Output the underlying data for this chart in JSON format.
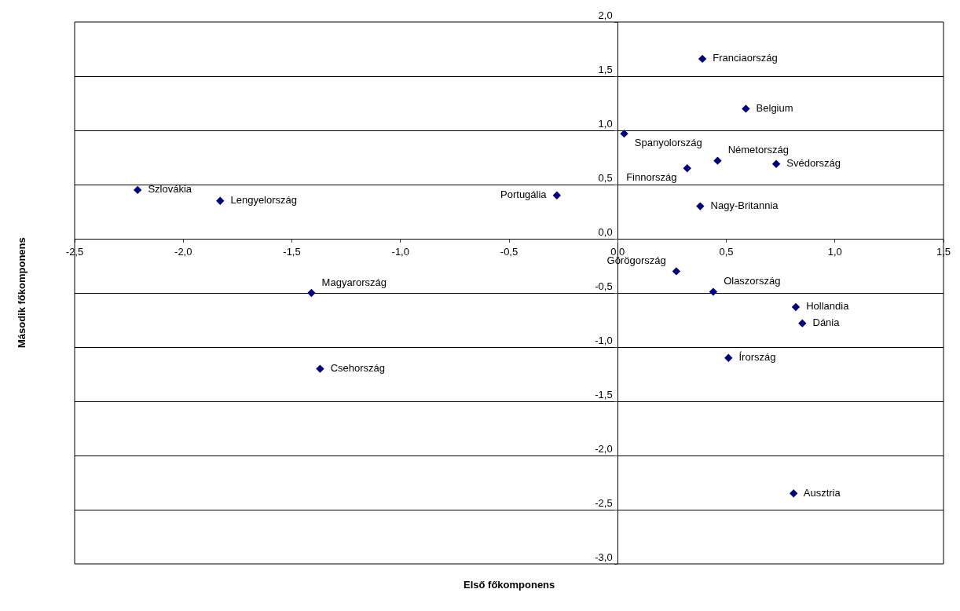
{
  "chart_data": {
    "type": "scatter",
    "xlabel": "Első főkomponens",
    "ylabel": "Második főkomponens",
    "xlim": [
      -2.5,
      1.5
    ],
    "ylim": [
      -3.0,
      2.0
    ],
    "xticks": [
      {
        "value": -2.5,
        "label": "-2,5"
      },
      {
        "value": -2.0,
        "label": "-2,0"
      },
      {
        "value": -1.5,
        "label": "-1,5"
      },
      {
        "value": -1.0,
        "label": "-1,0"
      },
      {
        "value": -0.5,
        "label": "-0,5"
      },
      {
        "value": 0.0,
        "label": "0,0"
      },
      {
        "value": 0.5,
        "label": "0,5"
      },
      {
        "value": 1.0,
        "label": "1,0"
      },
      {
        "value": 1.5,
        "label": "1,5"
      }
    ],
    "yticks": [
      {
        "value": -3.0,
        "label": "-3,0"
      },
      {
        "value": -2.5,
        "label": "-2,5"
      },
      {
        "value": -2.0,
        "label": "-2,0"
      },
      {
        "value": -1.5,
        "label": "-1,5"
      },
      {
        "value": -1.0,
        "label": "-1,0"
      },
      {
        "value": -0.5,
        "label": "-0,5"
      },
      {
        "value": 0.0,
        "label": "0,0"
      },
      {
        "value": 0.5,
        "label": "0,5"
      },
      {
        "value": 1.0,
        "label": "1,0"
      },
      {
        "value": 1.5,
        "label": "1,5"
      },
      {
        "value": 2.0,
        "label": "2,0"
      }
    ],
    "grid": "y",
    "marker": "diamond",
    "series": [
      {
        "color": "#000080",
        "x": [
          -2.21,
          -1.83,
          -1.41,
          -1.37,
          -0.28,
          0.03,
          0.32,
          0.46,
          0.73,
          0.59,
          0.39,
          0.38,
          0.27,
          0.44,
          0.82,
          0.85,
          0.51,
          0.81
        ],
        "values": [
          0.45,
          0.35,
          -0.5,
          -1.2,
          0.4,
          0.97,
          0.65,
          0.72,
          0.69,
          1.2,
          1.66,
          0.3,
          -0.3,
          -0.49,
          -0.63,
          -0.78,
          -1.1,
          -2.35
        ],
        "value_labels": [
          "Szlovákia",
          "Lengyelország",
          "Magyarország",
          "Csehország",
          "Portugália",
          "Spanyolország",
          "Finnország",
          "Németország",
          "Svédország",
          "Belgium",
          "Franciaország",
          "Nagy-Britannia",
          "Görögország",
          "Olaszország",
          "Hollandia",
          "Dánia",
          "Írország",
          "Ausztria"
        ]
      }
    ]
  }
}
